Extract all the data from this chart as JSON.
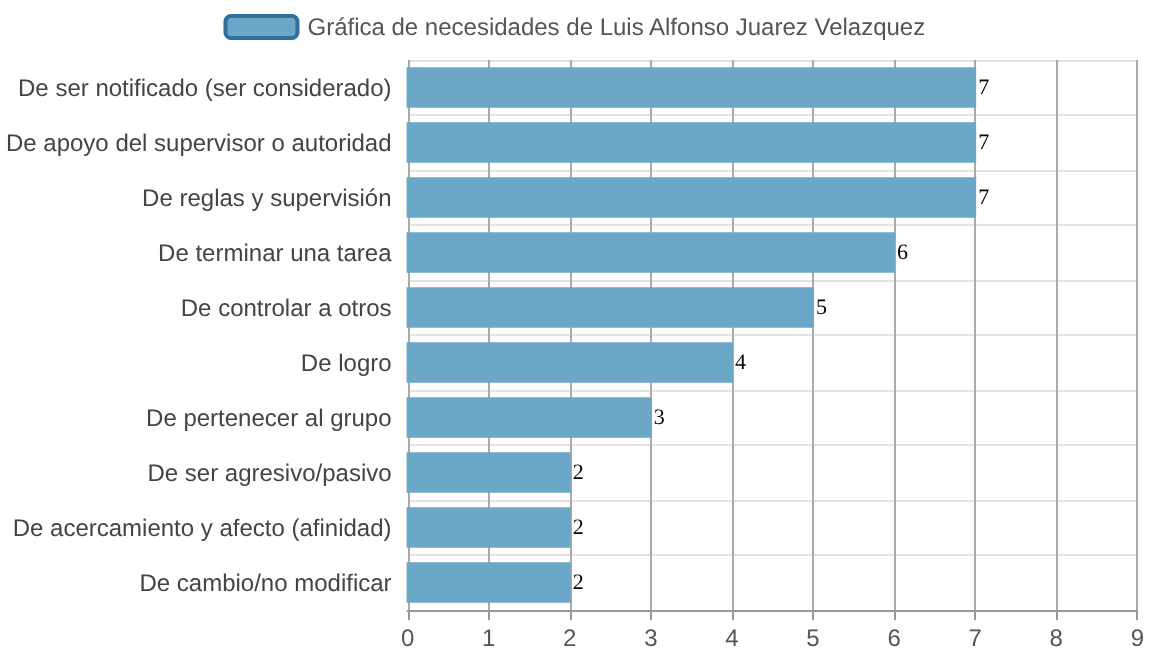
{
  "chart_data": {
    "type": "bar",
    "orientation": "horizontal",
    "categories": [
      "De ser notificado (ser considerado)",
      "De apoyo del supervisor o autoridad",
      "De reglas y supervisión",
      "De terminar una tarea",
      "De controlar a otros",
      "De logro",
      "De pertenecer al grupo",
      "De ser agresivo/pasivo",
      "De acercamiento y afecto (afinidad)",
      "De cambio/no modificar"
    ],
    "series": [
      {
        "name": "Gráfica de necesidades de Luis Alfonso Juarez Velazquez",
        "color": "#6ba7c6",
        "values": [
          7,
          7,
          7,
          6,
          5,
          4,
          3,
          2,
          2,
          2
        ]
      }
    ],
    "xlim": [
      0,
      9
    ],
    "xticks": [
      0,
      1,
      2,
      3,
      4,
      5,
      6,
      7,
      8,
      9
    ],
    "grid": true,
    "legend": "top",
    "data_labels": true
  }
}
